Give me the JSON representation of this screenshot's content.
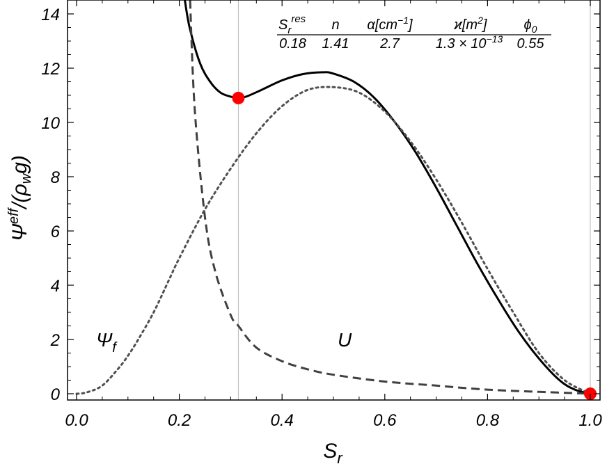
{
  "chart_data": {
    "type": "line",
    "xlabel": "S_r",
    "ylabel": "Ψ^eff/(ρ_w g)",
    "xlim": [
      0,
      1
    ],
    "ylim": [
      0,
      14.5
    ],
    "x_ticks": [
      "0.0",
      "0.2",
      "0.4",
      "0.6",
      "0.8",
      "1.0"
    ],
    "y_ticks": [
      "0",
      "2",
      "4",
      "6",
      "8",
      "10",
      "12",
      "14"
    ],
    "grid": false,
    "reference_lines_x": [
      0.315,
      1.0
    ],
    "curve_labels": {
      "psi_f": "Ψ_f",
      "u": "U"
    },
    "parameters": {
      "headers": [
        "S_r^res",
        "n",
        "α[cm^-1]",
        "ϰ[m^2]",
        "ϕ_0"
      ],
      "values": [
        "0.18",
        "1.41",
        "2.7",
        "1.3 × 10^-13",
        "0.55"
      ]
    },
    "series": [
      {
        "style": "solid",
        "x": [
          0.21,
          0.22,
          0.24,
          0.26,
          0.28,
          0.3,
          0.315,
          0.33,
          0.36,
          0.4,
          0.44,
          0.48,
          0.5,
          0.54,
          0.58,
          0.62,
          0.66,
          0.7,
          0.74,
          0.78,
          0.82,
          0.86,
          0.9,
          0.94,
          0.97,
          1.0
        ],
        "y": [
          14.6,
          13.5,
          12.2,
          11.5,
          11.1,
          10.95,
          10.9,
          10.95,
          11.2,
          11.55,
          11.78,
          11.85,
          11.8,
          11.5,
          10.9,
          10.0,
          8.9,
          7.6,
          6.2,
          4.8,
          3.5,
          2.3,
          1.3,
          0.5,
          0.15,
          0.0
        ]
      },
      {
        "style": "dashed",
        "x": [
          0.221,
          0.23,
          0.25,
          0.27,
          0.3,
          0.315,
          0.35,
          0.4,
          0.45,
          0.5,
          0.6,
          0.7,
          0.8,
          0.9,
          1.0
        ],
        "y": [
          14.5,
          10.5,
          6.5,
          4.5,
          2.9,
          2.5,
          1.7,
          1.2,
          0.9,
          0.7,
          0.45,
          0.3,
          0.15,
          0.07,
          0.0
        ],
        "label": "U"
      },
      {
        "style": "dotted",
        "x": [
          0.0,
          0.02,
          0.05,
          0.08,
          0.1,
          0.12,
          0.15,
          0.18,
          0.2,
          0.25,
          0.3,
          0.35,
          0.4,
          0.45,
          0.5,
          0.55,
          0.6,
          0.65,
          0.7,
          0.75,
          0.8,
          0.85,
          0.9,
          0.95,
          1.0
        ],
        "y": [
          0.0,
          0.05,
          0.3,
          0.9,
          1.4,
          2.0,
          3.0,
          4.2,
          5.0,
          6.8,
          8.3,
          9.6,
          10.6,
          11.2,
          11.3,
          11.1,
          10.4,
          9.3,
          7.9,
          6.3,
          4.6,
          3.0,
          1.5,
          0.5,
          0.0
        ],
        "label": "Ψ_f"
      }
    ],
    "markers": [
      {
        "x": 0.315,
        "y": 10.9,
        "color": "#ff0000"
      },
      {
        "x": 1.0,
        "y": 0.0,
        "color": "#ff0000"
      }
    ],
    "colors": {
      "solid": "#000000",
      "dashed": "#404040",
      "dotted": "#505050",
      "reference": "#c0c0c0",
      "marker": "#ff0000"
    }
  }
}
